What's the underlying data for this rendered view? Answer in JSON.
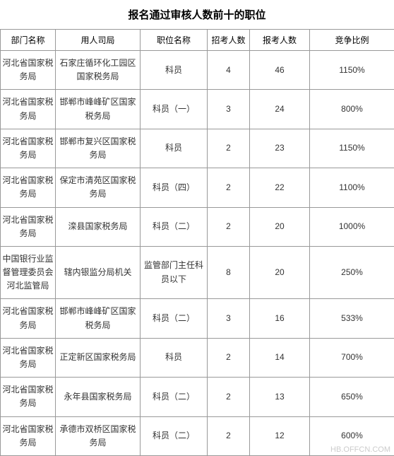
{
  "title": "报名通过审核人数前十的职位",
  "columns": [
    "部门名称",
    "用人司局",
    "职位名称",
    "招考人数",
    "报考人数",
    "竞争比例"
  ],
  "rows": [
    {
      "dept": "河北省国家税务局",
      "bureau": "石家庄循环化工园区国家税务局",
      "position": "科员",
      "recruit": "4",
      "apply": "46",
      "ratio": "1150%"
    },
    {
      "dept": "河北省国家税务局",
      "bureau": "邯郸市峰峰矿区国家税务局",
      "position": "科员（一）",
      "recruit": "3",
      "apply": "24",
      "ratio": "800%"
    },
    {
      "dept": "河北省国家税务局",
      "bureau": "邯郸市复兴区国家税务局",
      "position": "科员",
      "recruit": "2",
      "apply": "23",
      "ratio": "1150%"
    },
    {
      "dept": "河北省国家税务局",
      "bureau": "保定市清苑区国家税务局",
      "position": "科员（四）",
      "recruit": "2",
      "apply": "22",
      "ratio": "1100%"
    },
    {
      "dept": "河北省国家税务局",
      "bureau": "滦县国家税务局",
      "position": "科员（二）",
      "recruit": "2",
      "apply": "20",
      "ratio": "1000%"
    },
    {
      "dept": "中国银行业监督管理委员会河北监管局",
      "bureau": "辖内银监分局机关",
      "position": "监管部门主任科员以下",
      "recruit": "8",
      "apply": "20",
      "ratio": "250%"
    },
    {
      "dept": "河北省国家税务局",
      "bureau": "邯郸市峰峰矿区国家税务局",
      "position": "科员（二）",
      "recruit": "3",
      "apply": "16",
      "ratio": "533%"
    },
    {
      "dept": "河北省国家税务局",
      "bureau": "正定新区国家税务局",
      "position": "科员",
      "recruit": "2",
      "apply": "14",
      "ratio": "700%"
    },
    {
      "dept": "河北省国家税务局",
      "bureau": "永年县国家税务局",
      "position": "科员（二）",
      "recruit": "2",
      "apply": "13",
      "ratio": "650%"
    },
    {
      "dept": "河北省国家税务局",
      "bureau": "承德市双桥区国家税务局",
      "position": "科员（二）",
      "recruit": "2",
      "apply": "12",
      "ratio": "600%"
    }
  ],
  "watermark": "HB.OFFCN.COM"
}
